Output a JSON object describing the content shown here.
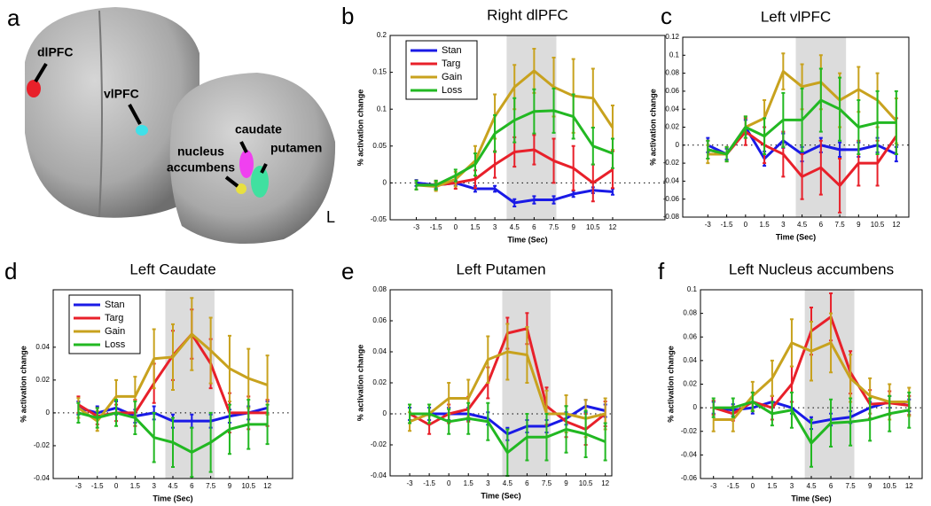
{
  "brain": {
    "panel_label": "a",
    "labels": {
      "dlpfc": "dlPFC",
      "vlpfc": "vlPFC",
      "caudate": "caudate",
      "putamen": "putamen",
      "nacc": [
        "nucleus",
        "accumbens"
      ],
      "side": "L"
    }
  },
  "chart_data": [
    {
      "type": "line",
      "panel_label": "b",
      "title": "Right dlPFC",
      "xlabel": "Time (Sec)",
      "ylabel": "% activation change",
      "x": [
        -3,
        -1.5,
        0,
        1.5,
        3,
        4.5,
        6,
        7.5,
        9,
        10.5,
        12
      ],
      "xlim": [
        -5,
        16
      ],
      "xticks": [
        -3,
        -1.5,
        0,
        1.5,
        3,
        4.5,
        6,
        7.5,
        9,
        10.5,
        12
      ],
      "ylim": [
        -0.05,
        0.2
      ],
      "yticks": [
        -0.05,
        0,
        0.05,
        0.1,
        0.15,
        0.2
      ],
      "shade": [
        3.9,
        7.7
      ],
      "legend": "upper left",
      "series": [
        {
          "name": "Stan",
          "color": "#1a1ae6",
          "values": [
            0,
            -0.003,
            0,
            -0.008,
            -0.008,
            -0.027,
            -0.023,
            -0.023,
            -0.015,
            -0.01,
            -0.012
          ],
          "errors": [
            0.004,
            0.004,
            0.004,
            0.004,
            0.004,
            0.005,
            0.005,
            0.005,
            0.004,
            0.004,
            0.004
          ]
        },
        {
          "name": "Targ",
          "color": "#e8202a",
          "values": [
            -0.003,
            -0.003,
            0,
            0.005,
            0.025,
            0.042,
            0.045,
            0.03,
            0.02,
            0,
            0.018
          ],
          "errors": [
            0.006,
            0.006,
            0.008,
            0.012,
            0.018,
            0.02,
            0.02,
            0.03,
            0.03,
            0.025,
            0.025
          ]
        },
        {
          "name": "Gain",
          "color": "#c8a21e",
          "values": [
            -0.003,
            -0.005,
            0.005,
            0.03,
            0.09,
            0.13,
            0.152,
            0.13,
            0.118,
            0.115,
            0.075
          ],
          "errors": [
            0.006,
            0.006,
            0.01,
            0.02,
            0.03,
            0.03,
            0.03,
            0.04,
            0.05,
            0.04,
            0.03
          ]
        },
        {
          "name": "Loss",
          "color": "#22b822",
          "values": [
            -0.003,
            -0.003,
            0.01,
            0.025,
            0.067,
            0.085,
            0.097,
            0.098,
            0.09,
            0.05,
            0.04
          ],
          "errors": [
            0.006,
            0.006,
            0.008,
            0.015,
            0.025,
            0.03,
            0.03,
            0.03,
            0.03,
            0.025,
            0.02
          ]
        }
      ]
    },
    {
      "type": "line",
      "panel_label": "c",
      "title": "Left  vlPFC",
      "xlabel": "Time (Sec)",
      "ylabel": "% activation change",
      "x": [
        -3,
        -1.5,
        0,
        1.5,
        3,
        4.5,
        6,
        7.5,
        9,
        10.5,
        12
      ],
      "xlim": [
        -5,
        13
      ],
      "xticks": [
        -3,
        -1.5,
        0,
        1.5,
        3,
        4.5,
        6,
        7.5,
        9,
        10.5,
        12
      ],
      "ylim": [
        -0.08,
        0.12
      ],
      "yticks": [
        -0.08,
        -0.06,
        -0.04,
        -0.02,
        0,
        0.02,
        0.04,
        0.06,
        0.08,
        0.1,
        0.12
      ],
      "shade": [
        4,
        8
      ],
      "series": [
        {
          "color": "#1a1ae6",
          "values": [
            0,
            -0.01,
            0.02,
            -0.015,
            0.005,
            -0.01,
            0,
            -0.005,
            -0.005,
            0,
            -0.01
          ],
          "errors": [
            0.008,
            0.006,
            0.008,
            0.008,
            0.008,
            0.008,
            0.008,
            0.008,
            0.008,
            0.008,
            0.008
          ]
        },
        {
          "color": "#e8202a",
          "values": [
            -0.005,
            -0.01,
            0.015,
            0,
            -0.01,
            -0.035,
            -0.025,
            -0.045,
            -0.02,
            -0.02,
            0.01
          ],
          "errors": [
            0.01,
            0.008,
            0.015,
            0.02,
            0.025,
            0.025,
            0.03,
            0.03,
            0.025,
            0.025,
            0.02
          ]
        },
        {
          "color": "#c8a21e",
          "values": [
            -0.01,
            -0.01,
            0.02,
            0.03,
            0.082,
            0.065,
            0.07,
            0.05,
            0.062,
            0.05,
            0.027
          ],
          "errors": [
            0.01,
            0.008,
            0.012,
            0.02,
            0.02,
            0.025,
            0.03,
            0.03,
            0.025,
            0.03,
            0.025
          ]
        },
        {
          "color": "#22b822",
          "values": [
            -0.005,
            -0.01,
            0.02,
            0.01,
            0.028,
            0.028,
            0.05,
            0.04,
            0.02,
            0.025,
            0.025
          ],
          "errors": [
            0.01,
            0.008,
            0.012,
            0.02,
            0.03,
            0.035,
            0.035,
            0.035,
            0.03,
            0.035,
            0.035
          ]
        }
      ]
    },
    {
      "type": "line",
      "panel_label": "d",
      "title": "Left Caudate",
      "xlabel": "Time (Sec)",
      "ylabel": "% activation change",
      "x": [
        -3,
        -1.5,
        0,
        1.5,
        3,
        4.5,
        6,
        7.5,
        9,
        10.5,
        12
      ],
      "xlim": [
        -5,
        14
      ],
      "xticks": [
        -3,
        -1.5,
        0,
        1.5,
        3,
        4.5,
        6,
        7.5,
        9,
        10.5,
        12
      ],
      "ylim": [
        -0.04,
        0.075
      ],
      "yticks": [
        -0.04,
        -0.02,
        0,
        0.02,
        0.04
      ],
      "shade": [
        3.9,
        7.8
      ],
      "legend": "upper left",
      "series": [
        {
          "name": "Stan",
          "color": "#1a1ae6",
          "values": [
            0.003,
            0,
            0.003,
            -0.002,
            0,
            -0.005,
            -0.005,
            -0.005,
            -0.002,
            0,
            0.003
          ],
          "errors": [
            0.004,
            0.004,
            0.004,
            0.004,
            0.004,
            0.004,
            0.004,
            0.004,
            0.004,
            0.004,
            0.004
          ]
        },
        {
          "name": "Targ",
          "color": "#e8202a",
          "values": [
            0.005,
            -0.002,
            0,
            0,
            0.018,
            0.035,
            0.048,
            0.03,
            0,
            0,
            0
          ],
          "errors": [
            0.005,
            0.005,
            0.005,
            0.008,
            0.012,
            0.015,
            0.015,
            0.015,
            0.012,
            0.01,
            0.008
          ]
        },
        {
          "name": "Gain",
          "color": "#c8a21e",
          "values": [
            0.003,
            -0.005,
            0.01,
            0.01,
            0.033,
            0.034,
            0.048,
            0.038,
            0.027,
            0.021,
            0.017
          ],
          "errors": [
            0.006,
            0.006,
            0.01,
            0.012,
            0.018,
            0.02,
            0.022,
            0.02,
            0.02,
            0.018,
            0.018
          ]
        },
        {
          "name": "Loss",
          "color": "#22b822",
          "values": [
            0,
            -0.003,
            0,
            -0.003,
            -0.015,
            -0.018,
            -0.024,
            -0.018,
            -0.01,
            -0.007,
            -0.007
          ],
          "errors": [
            0.006,
            0.006,
            0.008,
            0.01,
            0.015,
            0.015,
            0.015,
            0.018,
            0.015,
            0.015,
            0.012
          ]
        }
      ]
    },
    {
      "type": "line",
      "panel_label": "e",
      "title": "Left Putamen",
      "xlabel": "Time (Sec)",
      "ylabel": "% activation change",
      "x": [
        -3,
        -1.5,
        0,
        1.5,
        3,
        4.5,
        6,
        7.5,
        9,
        10.5,
        12
      ],
      "xlim": [
        -4.5,
        12.5
      ],
      "xticks": [
        -3,
        -1.5,
        0,
        1.5,
        3,
        4.5,
        6,
        7.5,
        9,
        10.5,
        12
      ],
      "ylim": [
        -0.04,
        0.08
      ],
      "yticks": [
        -0.04,
        -0.02,
        0,
        0.02,
        0.04,
        0.06,
        0.08
      ],
      "shade": [
        4.1,
        7.8
      ],
      "series": [
        {
          "color": "#1a1ae6",
          "values": [
            0,
            0,
            0,
            0,
            -0.003,
            -0.013,
            -0.008,
            -0.008,
            -0.003,
            0.005,
            0.002
          ],
          "errors": [
            0.004,
            0.004,
            0.004,
            0.004,
            0.004,
            0.004,
            0.004,
            0.004,
            0.004,
            0.004,
            0.004
          ]
        },
        {
          "color": "#e8202a",
          "values": [
            0,
            -0.007,
            0,
            0.003,
            0.02,
            0.052,
            0.055,
            0.005,
            -0.005,
            -0.01,
            0
          ],
          "errors": [
            0.006,
            0.006,
            0.006,
            0.008,
            0.01,
            0.01,
            0.01,
            0.012,
            0.01,
            0.01,
            0.008
          ]
        },
        {
          "color": "#c8a21e",
          "values": [
            -0.005,
            0,
            0.01,
            0.01,
            0.035,
            0.04,
            0.038,
            0,
            0,
            -0.003,
            0
          ],
          "errors": [
            0.006,
            0.006,
            0.01,
            0.012,
            0.015,
            0.018,
            0.018,
            0.015,
            0.012,
            0.012,
            0.01
          ]
        },
        {
          "color": "#22b822",
          "values": [
            0,
            0,
            -0.005,
            -0.003,
            -0.005,
            -0.025,
            -0.015,
            -0.015,
            -0.01,
            -0.013,
            -0.018
          ],
          "errors": [
            0.006,
            0.006,
            0.008,
            0.01,
            0.012,
            0.015,
            0.015,
            0.015,
            0.015,
            0.015,
            0.012
          ]
        }
      ]
    },
    {
      "type": "line",
      "panel_label": "f",
      "title": "Left Nucleus accumbens",
      "xlabel": "Time (Sec)",
      "ylabel": "% activation change",
      "x": [
        -3,
        -1.5,
        0,
        1.5,
        3,
        4.5,
        6,
        7.5,
        9,
        10.5,
        12
      ],
      "xlim": [
        -4,
        13
      ],
      "xticks": [
        -3,
        -1.5,
        0,
        1.5,
        3,
        4.5,
        6,
        7.5,
        9,
        10.5,
        12
      ],
      "ylim": [
        -0.06,
        0.1
      ],
      "yticks": [
        -0.06,
        -0.04,
        -0.02,
        0,
        0.02,
        0.04,
        0.06,
        0.08,
        0.1
      ],
      "shade": [
        4,
        7.8
      ],
      "series": [
        {
          "color": "#1a1ae6",
          "values": [
            0,
            -0.002,
            0,
            0.005,
            0,
            -0.013,
            -0.01,
            -0.008,
            0,
            0.005,
            0.002
          ],
          "errors": [
            0.005,
            0.005,
            0.005,
            0.005,
            0.005,
            0.005,
            0.005,
            0.005,
            0.005,
            0.005,
            0.005
          ]
        },
        {
          "color": "#e8202a",
          "values": [
            0,
            -0.005,
            0.005,
            0,
            0.02,
            0.065,
            0.077,
            0.03,
            0.003,
            0.004,
            0.002
          ],
          "errors": [
            0.006,
            0.006,
            0.008,
            0.01,
            0.015,
            0.02,
            0.02,
            0.018,
            0.012,
            0.01,
            0.008
          ]
        },
        {
          "color": "#c8a21e",
          "values": [
            -0.01,
            -0.01,
            0.01,
            0.025,
            0.055,
            0.048,
            0.055,
            0.025,
            0.01,
            0.005,
            0.005
          ],
          "errors": [
            0.01,
            0.01,
            0.012,
            0.015,
            0.02,
            0.025,
            0.025,
            0.02,
            0.015,
            0.015,
            0.012
          ]
        },
        {
          "color": "#22b822",
          "values": [
            0,
            0,
            0.005,
            -0.005,
            -0.002,
            -0.03,
            -0.013,
            -0.012,
            -0.01,
            -0.005,
            -0.002
          ],
          "errors": [
            0.008,
            0.008,
            0.008,
            0.01,
            0.015,
            0.02,
            0.02,
            0.02,
            0.018,
            0.015,
            0.015
          ]
        }
      ]
    }
  ]
}
